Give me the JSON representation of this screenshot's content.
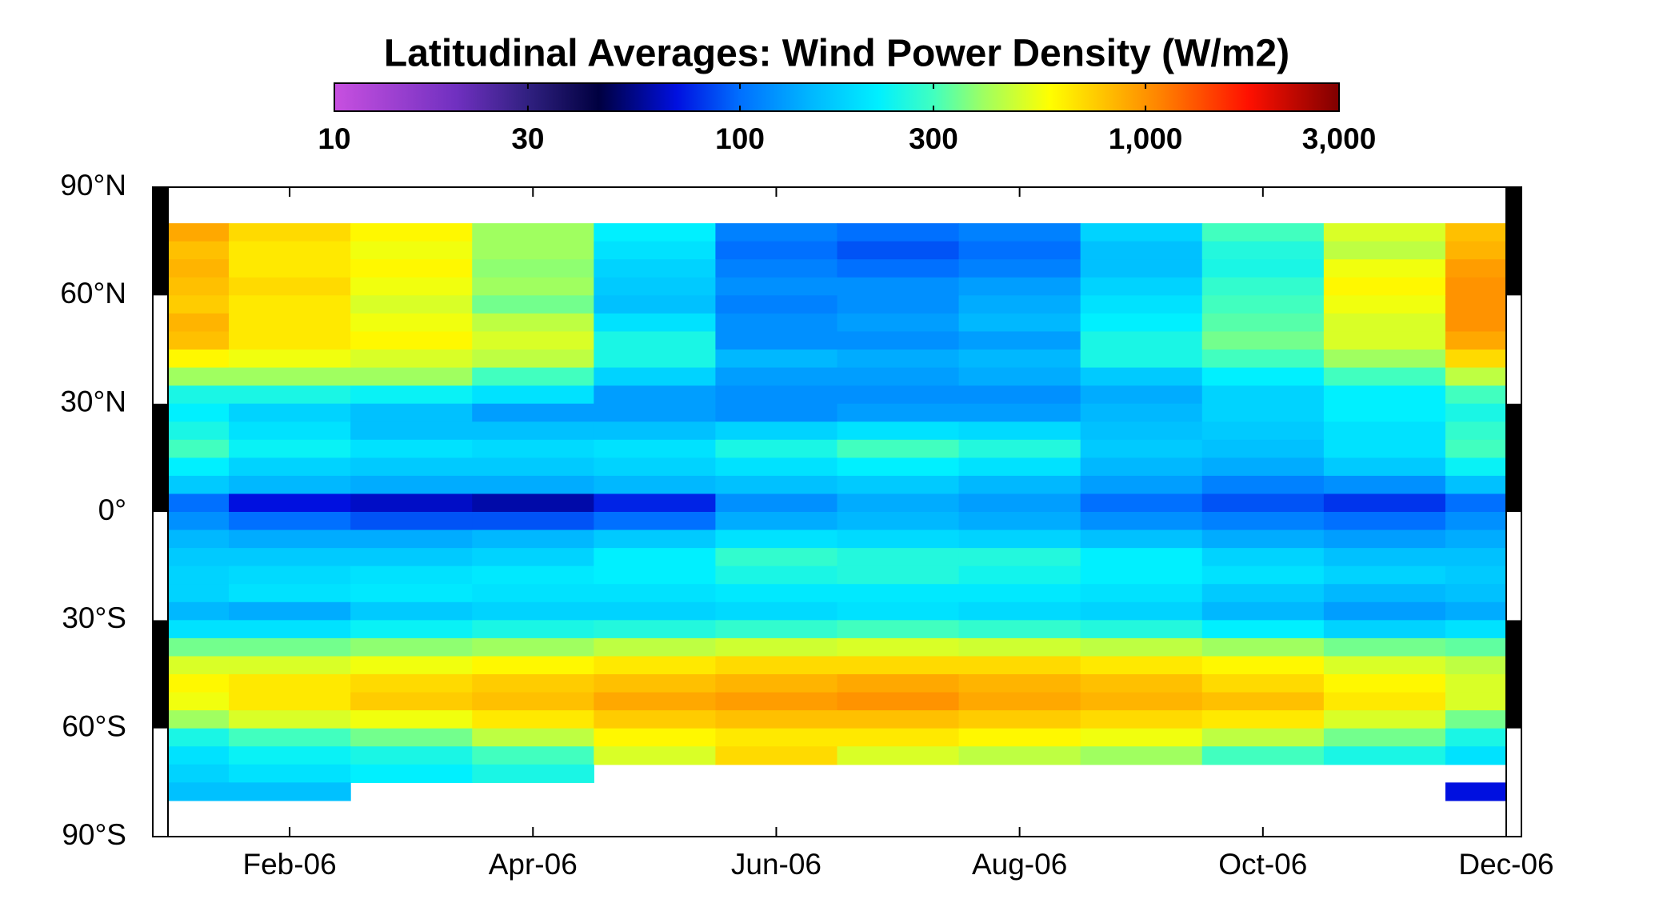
{
  "chart_data": {
    "type": "heatmap",
    "title": "Latitudinal Averages: Wind Power Density (W/m2)",
    "x": [
      null,
      "Feb-06",
      null,
      "Apr-06",
      null,
      "Jun-06",
      null,
      "Aug-06",
      null,
      "Oct-06",
      null,
      "Dec-06"
    ],
    "y": [
      77.5,
      72.5,
      67.5,
      62.5,
      57.5,
      52.5,
      47.5,
      42.5,
      37.5,
      32.5,
      27.5,
      22.5,
      17.5,
      12.5,
      7.5,
      2.5,
      -2.5,
      -7.5,
      -12.5,
      -17.5,
      -22.5,
      -27.5,
      -32.5,
      -37.5,
      -42.5,
      -47.5,
      -52.5,
      -57.5,
      -62.5,
      -67.5,
      -72.5,
      -77.5
    ],
    "values": [
      [
        900,
        700,
        600,
        400,
        220,
        110,
        100,
        110,
        180,
        300,
        500,
        800
      ],
      [
        800,
        650,
        550,
        400,
        200,
        100,
        90,
        100,
        160,
        260,
        450,
        850
      ],
      [
        850,
        650,
        600,
        380,
        180,
        110,
        100,
        110,
        160,
        250,
        550,
        950
      ],
      [
        800,
        700,
        550,
        400,
        170,
        120,
        120,
        130,
        180,
        280,
        600,
        1000
      ],
      [
        750,
        650,
        500,
        350,
        160,
        110,
        120,
        140,
        200,
        300,
        550,
        1000
      ],
      [
        850,
        650,
        550,
        450,
        200,
        120,
        130,
        150,
        220,
        320,
        500,
        1000
      ],
      [
        800,
        650,
        600,
        500,
        250,
        120,
        120,
        130,
        250,
        350,
        500,
        900
      ],
      [
        600,
        550,
        500,
        450,
        250,
        150,
        140,
        150,
        250,
        300,
        400,
        700
      ],
      [
        400,
        400,
        400,
        300,
        180,
        130,
        130,
        140,
        170,
        220,
        300,
        450
      ],
      [
        250,
        250,
        230,
        200,
        130,
        120,
        120,
        120,
        140,
        180,
        220,
        300
      ],
      [
        220,
        180,
        160,
        130,
        130,
        120,
        130,
        130,
        150,
        180,
        220,
        250
      ],
      [
        250,
        200,
        160,
        160,
        160,
        180,
        200,
        190,
        160,
        170,
        200,
        280
      ],
      [
        300,
        230,
        200,
        190,
        200,
        250,
        300,
        260,
        170,
        160,
        200,
        300
      ],
      [
        220,
        180,
        170,
        170,
        180,
        200,
        220,
        200,
        150,
        140,
        170,
        230
      ],
      [
        170,
        150,
        140,
        140,
        150,
        160,
        170,
        150,
        130,
        110,
        120,
        160
      ],
      [
        100,
        70,
        65,
        60,
        75,
        120,
        140,
        130,
        100,
        90,
        80,
        100
      ],
      [
        120,
        100,
        90,
        90,
        100,
        140,
        150,
        140,
        120,
        110,
        100,
        120
      ],
      [
        150,
        140,
        140,
        150,
        170,
        200,
        190,
        180,
        160,
        140,
        130,
        140
      ],
      [
        170,
        170,
        170,
        180,
        220,
        280,
        260,
        260,
        220,
        180,
        160,
        160
      ],
      [
        180,
        190,
        200,
        210,
        220,
        250,
        260,
        240,
        220,
        200,
        180,
        170
      ],
      [
        180,
        200,
        210,
        200,
        200,
        210,
        210,
        210,
        200,
        170,
        150,
        160
      ],
      [
        150,
        140,
        170,
        180,
        180,
        190,
        200,
        190,
        180,
        150,
        130,
        140
      ],
      [
        200,
        200,
        230,
        250,
        260,
        280,
        300,
        280,
        260,
        220,
        180,
        200
      ],
      [
        350,
        350,
        380,
        400,
        450,
        480,
        500,
        480,
        450,
        400,
        350,
        330
      ],
      [
        500,
        500,
        550,
        600,
        650,
        700,
        700,
        700,
        650,
        600,
        500,
        450
      ],
      [
        600,
        650,
        700,
        750,
        800,
        850,
        900,
        850,
        800,
        700,
        600,
        500
      ],
      [
        550,
        650,
        750,
        800,
        900,
        950,
        1000,
        900,
        850,
        800,
        650,
        500
      ],
      [
        400,
        500,
        550,
        650,
        750,
        800,
        800,
        750,
        700,
        650,
        500,
        350
      ],
      [
        250,
        300,
        350,
        450,
        600,
        650,
        650,
        600,
        550,
        450,
        350,
        250
      ],
      [
        200,
        230,
        250,
        300,
        500,
        700,
        500,
        450,
        400,
        300,
        250,
        200
      ],
      [
        180,
        200,
        220,
        250,
        null,
        null,
        null,
        null,
        null,
        null,
        null,
        null
      ],
      [
        160,
        160,
        null,
        null,
        null,
        null,
        null,
        null,
        null,
        null,
        null,
        70
      ]
    ],
    "ylim": [
      -90,
      90
    ],
    "yticks": [
      {
        "value": -90,
        "label": "90°S"
      },
      {
        "value": -60,
        "label": "60°S"
      },
      {
        "value": -30,
        "label": "30°S"
      },
      {
        "value": 0,
        "label": "0°"
      },
      {
        "value": 30,
        "label": "30°N"
      },
      {
        "value": 60,
        "label": "60°N"
      },
      {
        "value": 90,
        "label": "90°N"
      }
    ],
    "clim": [
      10,
      3000
    ],
    "colorscale": "log",
    "cticks": [
      10,
      30,
      100,
      300,
      {
        "value": 1000,
        "label": "1,000"
      },
      {
        "value": 3000,
        "label": "3,000"
      }
    ]
  }
}
